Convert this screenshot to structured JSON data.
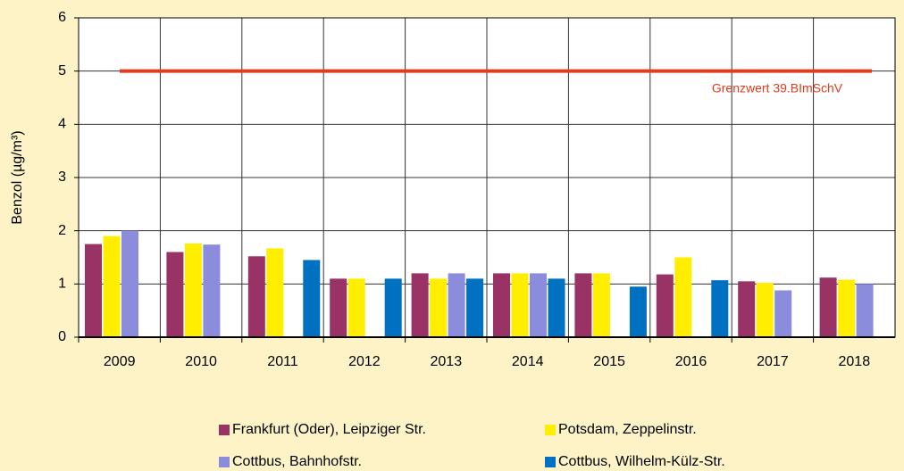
{
  "chart_data": {
    "type": "bar",
    "y_label": "Benzol (µg/m³)",
    "categories": [
      "2009",
      "2010",
      "2011",
      "2012",
      "2013",
      "2014",
      "2015",
      "2016",
      "2017",
      "2018"
    ],
    "series": [
      {
        "name": "Frankfurt (Oder), Leipziger Str.",
        "color": "#993366",
        "values": [
          1.75,
          1.6,
          1.52,
          1.1,
          1.2,
          1.2,
          1.2,
          1.18,
          1.05,
          1.12
        ]
      },
      {
        "name": "Potsdam, Zeppelinstr.",
        "color": "#ffee00",
        "values": [
          1.9,
          1.76,
          1.67,
          1.1,
          1.1,
          1.2,
          1.2,
          1.5,
          1.02,
          1.08
        ]
      },
      {
        "name": "Cottbus, Bahnhofstr.",
        "color": "#8c8cdc",
        "values": [
          2.0,
          1.74,
          null,
          null,
          1.2,
          1.2,
          null,
          null,
          0.88,
          1.0
        ]
      },
      {
        "name": "Cottbus, Wilhelm-Külz-Str.",
        "color": "#0070c0",
        "values": [
          null,
          null,
          1.45,
          1.1,
          1.1,
          1.1,
          0.95,
          1.07,
          null,
          null
        ]
      }
    ],
    "limit_line": {
      "label": "Grenzwert 39.BImSchV",
      "value": 5,
      "color": "#e03c1e"
    },
    "ylim": [
      0,
      6
    ],
    "yticks": [
      0,
      1,
      2,
      3,
      4,
      5,
      6
    ],
    "grid": true
  }
}
